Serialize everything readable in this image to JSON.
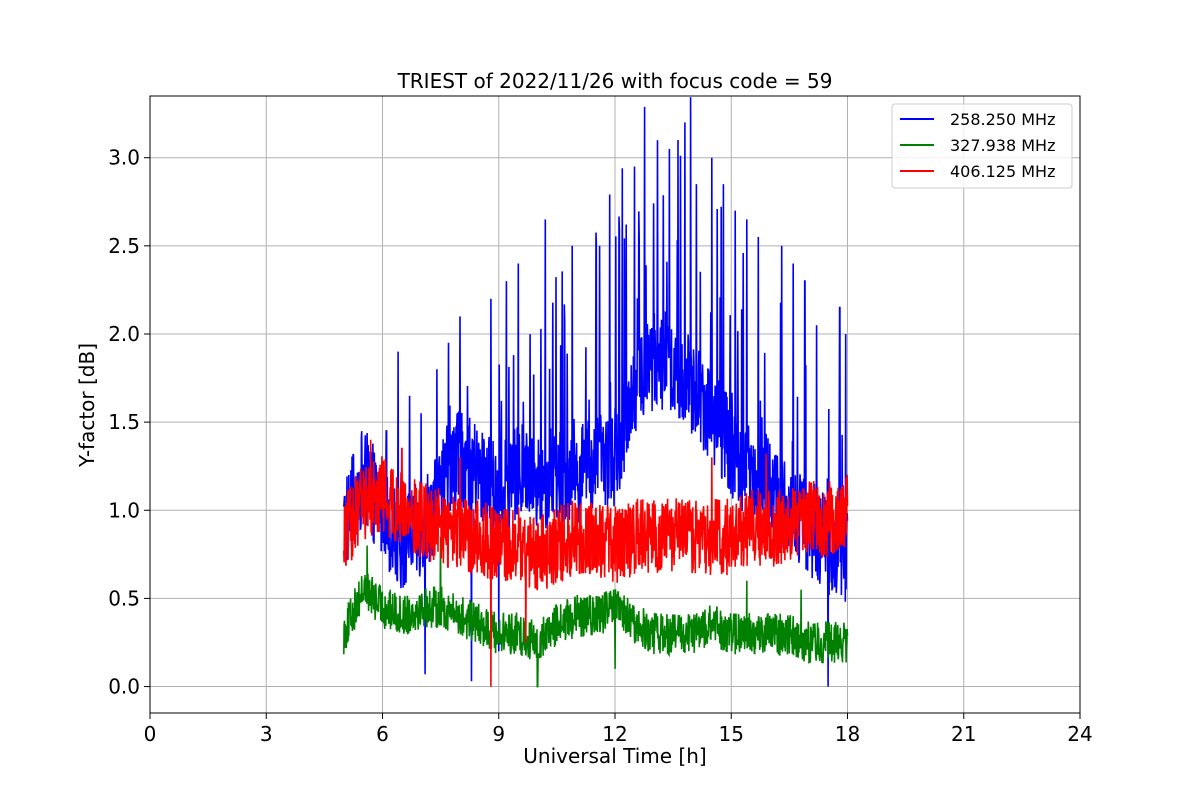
{
  "chart_data": {
    "type": "line",
    "title": "TRIEST of 2022/11/26 with focus code = 59",
    "xlabel": "Universal Time [h]",
    "ylabel": "Y-factor [dB]",
    "xlim": [
      0,
      24
    ],
    "ylim": [
      -0.15,
      3.35
    ],
    "xticks": [
      0,
      3,
      6,
      9,
      12,
      15,
      18,
      21,
      24
    ],
    "xtick_labels": [
      "0",
      "3",
      "6",
      "9",
      "12",
      "15",
      "18",
      "21",
      "24"
    ],
    "yticks": [
      0.0,
      0.5,
      1.0,
      1.5,
      2.0,
      2.5,
      3.0
    ],
    "ytick_labels": [
      "0.0",
      "0.5",
      "1.0",
      "1.5",
      "2.0",
      "2.5",
      "3.0"
    ],
    "grid": true,
    "legend_position": "top-right",
    "series": [
      {
        "name": "258.250 MHz",
        "color": "#0000ff",
        "x": [
          5.0,
          5.5,
          6.0,
          6.5,
          7.0,
          7.5,
          8.0,
          8.5,
          9.0,
          9.5,
          10.0,
          10.5,
          11.0,
          11.5,
          12.0,
          12.5,
          13.0,
          13.5,
          14.0,
          14.5,
          15.0,
          15.5,
          16.0,
          16.5,
          17.0,
          17.5,
          18.0
        ],
        "y": [
          0.9,
          1.2,
          1.0,
          0.8,
          0.9,
          1.1,
          1.3,
          1.2,
          1.1,
          1.2,
          1.15,
          1.2,
          1.2,
          1.25,
          1.3,
          1.7,
          1.85,
          1.8,
          1.7,
          1.55,
          1.35,
          1.2,
          1.15,
          1.0,
          0.9,
          0.8,
          0.75
        ],
        "peaks": [
          [
            6.1,
            1.45
          ],
          [
            6.4,
            1.9
          ],
          [
            6.7,
            1.65
          ],
          [
            7.0,
            1.55
          ],
          [
            7.4,
            1.8
          ],
          [
            7.7,
            1.95
          ],
          [
            8.0,
            2.1
          ],
          [
            8.3,
            2.3
          ],
          [
            8.6,
            2.25
          ],
          [
            8.8,
            2.2
          ],
          [
            9.2,
            2.3
          ],
          [
            9.5,
            2.4
          ],
          [
            9.8,
            2.5
          ],
          [
            10.2,
            2.65
          ],
          [
            10.6,
            2.75
          ],
          [
            10.9,
            2.5
          ],
          [
            11.2,
            2.45
          ],
          [
            11.6,
            2.5
          ],
          [
            12.1,
            2.6
          ],
          [
            12.5,
            2.95
          ],
          [
            12.8,
            3.2
          ],
          [
            13.1,
            3.1
          ],
          [
            13.4,
            3.05
          ],
          [
            13.8,
            3.2
          ],
          [
            14.1,
            2.85
          ],
          [
            14.5,
            3.0
          ],
          [
            14.8,
            2.85
          ],
          [
            15.1,
            2.7
          ],
          [
            15.4,
            2.65
          ],
          [
            15.7,
            2.55
          ],
          [
            16.0,
            2.6
          ],
          [
            16.3,
            2.5
          ],
          [
            16.6,
            2.4
          ],
          [
            16.9,
            2.3
          ],
          [
            17.2,
            2.05
          ],
          [
            17.5,
            2.0
          ],
          [
            17.8,
            2.15
          ],
          [
            17.95,
            2.0
          ]
        ],
        "min_dips": [
          [
            7.1,
            0.07
          ],
          [
            8.3,
            0.03
          ],
          [
            9.0,
            0.2
          ],
          [
            17.5,
            0.0
          ]
        ]
      },
      {
        "name": "327.938 MHz",
        "color": "#008000",
        "x": [
          5.0,
          5.5,
          6.0,
          6.5,
          7.0,
          7.5,
          8.0,
          8.5,
          9.0,
          9.5,
          10.0,
          10.5,
          11.0,
          11.5,
          12.0,
          12.5,
          13.0,
          13.5,
          14.0,
          14.5,
          15.0,
          15.5,
          16.0,
          16.5,
          17.0,
          17.5,
          18.0
        ],
        "y": [
          0.3,
          0.55,
          0.45,
          0.4,
          0.45,
          0.45,
          0.4,
          0.35,
          0.3,
          0.3,
          0.25,
          0.35,
          0.4,
          0.4,
          0.45,
          0.35,
          0.3,
          0.3,
          0.3,
          0.35,
          0.3,
          0.3,
          0.3,
          0.3,
          0.25,
          0.25,
          0.25
        ],
        "peaks": [
          [
            5.6,
            0.8
          ],
          [
            7.5,
            0.85
          ],
          [
            15.4,
            0.6
          ],
          [
            16.8,
            0.55
          ]
        ],
        "min_dips": [
          [
            10.0,
            0.0
          ],
          [
            12.0,
            0.1
          ]
        ]
      },
      {
        "name": "406.125 MHz",
        "color": "#ff0000",
        "x": [
          5.0,
          5.5,
          6.0,
          6.5,
          7.0,
          7.5,
          8.0,
          8.5,
          9.0,
          9.5,
          10.0,
          10.5,
          11.0,
          11.5,
          12.0,
          12.5,
          13.0,
          13.5,
          14.0,
          14.5,
          15.0,
          15.5,
          16.0,
          16.5,
          17.0,
          17.5,
          18.0
        ],
        "y": [
          0.85,
          1.05,
          1.1,
          1.0,
          0.95,
          0.9,
          0.85,
          0.85,
          0.8,
          0.8,
          0.75,
          0.8,
          0.85,
          0.85,
          0.8,
          0.85,
          0.85,
          0.85,
          0.85,
          0.85,
          0.85,
          0.9,
          0.9,
          0.9,
          0.95,
          0.95,
          1.0
        ],
        "peaks": [
          [
            5.7,
            1.4
          ],
          [
            6.5,
            1.35
          ],
          [
            8.0,
            1.3
          ],
          [
            14.5,
            1.3
          ],
          [
            15.9,
            1.32
          ]
        ],
        "min_dips": [
          [
            8.8,
            0.0
          ],
          [
            9.7,
            0.25
          ]
        ]
      }
    ],
    "legend": [
      {
        "label": "258.250 MHz",
        "color": "#0000ff"
      },
      {
        "label": "327.938 MHz",
        "color": "#008000"
      },
      {
        "label": "406.125 MHz",
        "color": "#ff0000"
      }
    ]
  }
}
